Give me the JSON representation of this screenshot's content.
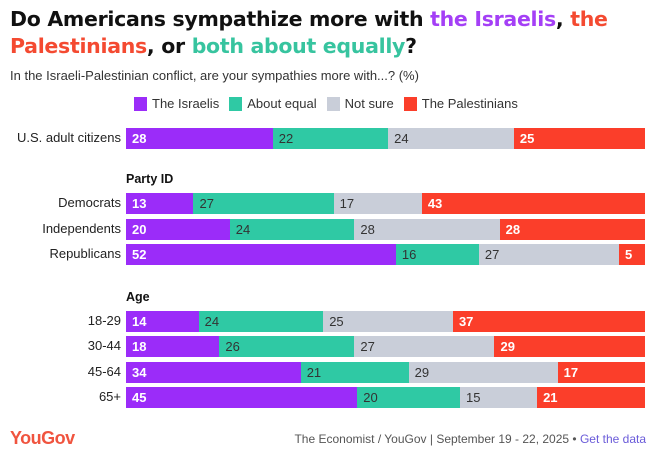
{
  "header": {
    "title_part1": "Do Americans sympathize more with ",
    "title_israelis": "the Israelis",
    "title_part2": ", ",
    "title_palestinians": "the Palestinians",
    "title_part3": ", or ",
    "title_equal": "both about equally",
    "title_part4": "?",
    "subtitle": "In the Israeli-Palestinian conflict, are your sympathies more with...? (%)"
  },
  "colors": {
    "israelis": "#9b2cf9",
    "equal": "#2fc9a4",
    "not_sure": "#c9ced9",
    "palestinians": "#fb3e2a"
  },
  "chart_data": {
    "type": "bar",
    "orientation": "horizontal",
    "stacked": true,
    "title": "Do Americans sympathize more with the Israelis, the Palestinians, or both about equally?",
    "subtitle": "In the Israeli-Palestinian conflict, are your sympathies more with...? (%)",
    "xlim": [
      0,
      100
    ],
    "legend_position": "top",
    "legend": [
      "The Israelis",
      "About equal",
      "Not sure",
      "The Palestinians"
    ],
    "groups": [
      {
        "label": "",
        "categories": [
          "U.S. adult citizens"
        ]
      },
      {
        "label": "Party ID",
        "categories": [
          "Democrats",
          "Independents",
          "Republicans"
        ]
      },
      {
        "label": "Age",
        "categories": [
          "18-29",
          "30-44",
          "45-64",
          "65+"
        ]
      }
    ],
    "categories": [
      "U.S. adult citizens",
      "Democrats",
      "Independents",
      "Republicans",
      "18-29",
      "30-44",
      "45-64",
      "65+"
    ],
    "series": [
      {
        "name": "The Israelis",
        "values": [
          28,
          13,
          20,
          52,
          14,
          18,
          34,
          45
        ]
      },
      {
        "name": "About equal",
        "values": [
          22,
          27,
          24,
          16,
          24,
          26,
          21,
          20
        ]
      },
      {
        "name": "Not sure",
        "values": [
          24,
          17,
          28,
          27,
          25,
          27,
          29,
          15
        ]
      },
      {
        "name": "The Palestinians",
        "values": [
          25,
          43,
          28,
          5,
          37,
          29,
          17,
          21
        ]
      }
    ]
  },
  "footer": {
    "logo": "YouGov",
    "source": "The Economist / YouGov | September 19 - 22, 2025 • ",
    "link": "Get the data"
  }
}
